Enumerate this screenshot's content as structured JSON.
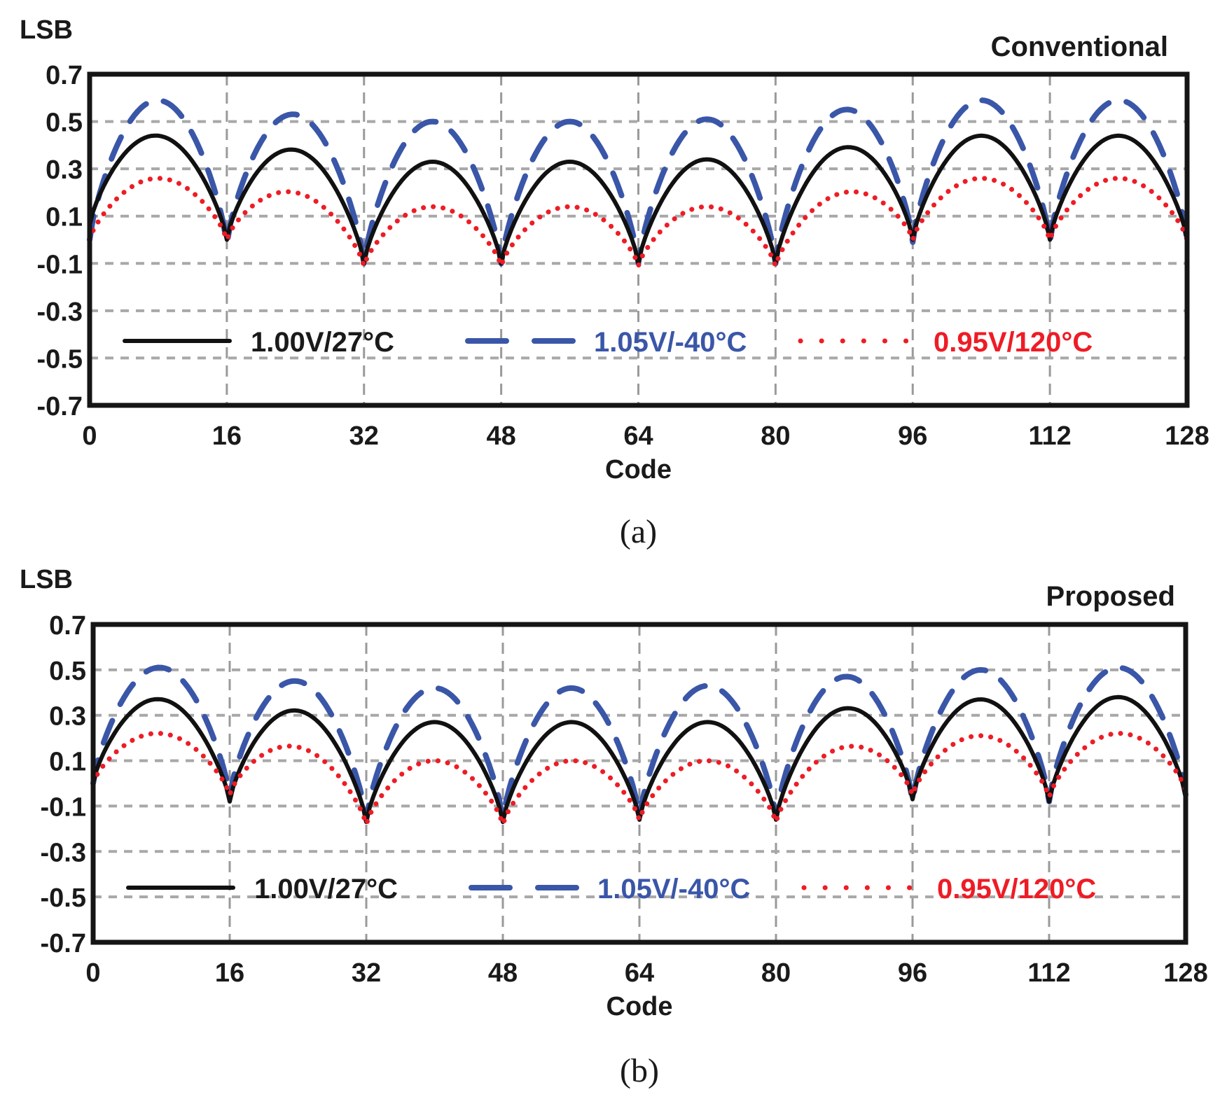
{
  "chart_data": [
    {
      "type": "line",
      "panel": "(a)",
      "title": "Conventional",
      "ylabel": "LSB",
      "xlabel": "Code",
      "caption": "(a)",
      "xlim": [
        0,
        128
      ],
      "ylim": [
        -0.7,
        0.7
      ],
      "xticks": [
        0,
        16,
        32,
        48,
        64,
        80,
        96,
        112,
        128
      ],
      "xtick_labels": [
        "0",
        "16",
        "32",
        "48",
        "64",
        "80",
        "96",
        "112",
        "128"
      ],
      "yticks": [
        0.7,
        0.5,
        0.3,
        0.1,
        -0.1,
        -0.3,
        -0.5,
        -0.7
      ],
      "ytick_labels": [
        "0.7",
        "0.5",
        "0.3",
        "0.1",
        "-0.1",
        "-0.3",
        "-0.5",
        "-0.7"
      ],
      "grid": true,
      "legend_position": "bottom",
      "segment_boundaries": [
        0,
        16,
        32,
        48,
        64,
        80,
        96,
        112,
        128
      ],
      "series": [
        {
          "name": "1.00V/27°C",
          "color": "#111111",
          "style": "solid",
          "troughs": [
            0.06,
            0.0,
            -0.1,
            -0.1,
            -0.1,
            -0.1,
            0.0,
            0.0,
            0.0
          ],
          "peaks": [
            0.44,
            0.38,
            0.33,
            0.33,
            0.34,
            0.39,
            0.44,
            0.44
          ]
        },
        {
          "name": "1.05V/-40°C",
          "color": "#3a56a8",
          "style": "dashed",
          "troughs": [
            0.0,
            -0.02,
            -0.1,
            -0.1,
            -0.1,
            -0.1,
            -0.01,
            -0.01,
            0.0
          ],
          "peaks": [
            0.59,
            0.53,
            0.5,
            0.5,
            0.51,
            0.55,
            0.59,
            0.59
          ]
        },
        {
          "name": "0.95V/120°C",
          "color": "#ee1c25",
          "style": "dotted",
          "troughs": [
            0.0,
            0.0,
            -0.11,
            -0.11,
            -0.11,
            -0.11,
            0.0,
            0.0,
            0.0
          ],
          "peaks": [
            0.26,
            0.2,
            0.14,
            0.14,
            0.14,
            0.2,
            0.26,
            0.26
          ]
        }
      ]
    },
    {
      "type": "line",
      "panel": "(b)",
      "title": "Proposed",
      "ylabel": "LSB",
      "xlabel": "Code",
      "caption": "(b)",
      "xlim": [
        0,
        128
      ],
      "ylim": [
        -0.7,
        0.7
      ],
      "xticks": [
        0,
        16,
        32,
        48,
        64,
        80,
        96,
        112,
        128
      ],
      "xtick_labels": [
        "0",
        "16",
        "32",
        "48",
        "64",
        "80",
        "96",
        "112",
        "128"
      ],
      "yticks": [
        0.7,
        0.5,
        0.3,
        0.1,
        -0.1,
        -0.3,
        -0.5,
        -0.7
      ],
      "ytick_labels": [
        "0.7",
        "0.5",
        "0.3",
        "0.1",
        "-0.1",
        "-0.3",
        "-0.5",
        "-0.7"
      ],
      "grid": true,
      "legend_position": "bottom",
      "segment_boundaries": [
        0,
        16,
        32,
        48,
        64,
        80,
        96,
        112,
        128
      ],
      "series": [
        {
          "name": "1.00V/27°C",
          "color": "#111111",
          "style": "solid",
          "troughs": [
            0.0,
            -0.08,
            -0.17,
            -0.17,
            -0.16,
            -0.16,
            -0.07,
            -0.08,
            -0.06
          ],
          "peaks": [
            0.37,
            0.32,
            0.27,
            0.27,
            0.27,
            0.33,
            0.37,
            0.38
          ]
        },
        {
          "name": "1.05V/-40°C",
          "color": "#3a56a8",
          "style": "dashed",
          "troughs": [
            0.0,
            -0.06,
            -0.16,
            -0.16,
            -0.15,
            -0.15,
            -0.08,
            -0.08,
            -0.05
          ],
          "peaks": [
            0.51,
            0.45,
            0.42,
            0.42,
            0.43,
            0.47,
            0.5,
            0.51
          ]
        },
        {
          "name": "0.95V/120°C",
          "color": "#ee1c25",
          "style": "dotted",
          "troughs": [
            0.0,
            -0.05,
            -0.18,
            -0.18,
            -0.16,
            -0.17,
            -0.05,
            -0.06,
            -0.03
          ],
          "peaks": [
            0.22,
            0.16,
            0.1,
            0.1,
            0.1,
            0.16,
            0.21,
            0.22
          ]
        }
      ]
    }
  ]
}
